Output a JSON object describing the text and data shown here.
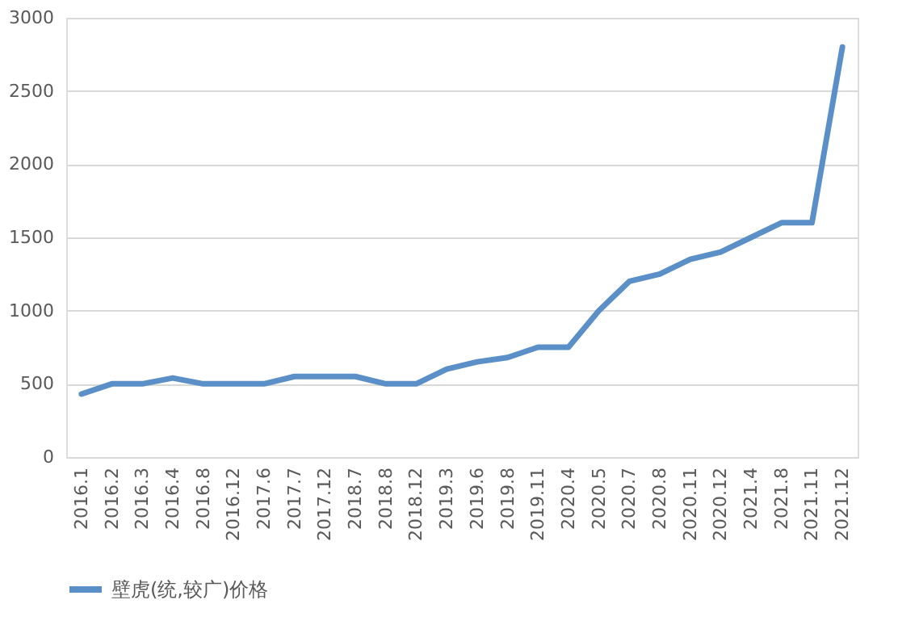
{
  "chart_data": {
    "type": "line",
    "categories": [
      "2016.1",
      "2016.2",
      "2016.3",
      "2016.4",
      "2016.8",
      "2016.12",
      "2017.6",
      "2017.7",
      "2017.12",
      "2018.7",
      "2018.8",
      "2018.12",
      "2019.3",
      "2019.6",
      "2019.8",
      "2019.11",
      "2020.4",
      "2020.5",
      "2020.7",
      "2020.8",
      "2020.11",
      "2020.12",
      "2021.4",
      "2021.8",
      "2021.11",
      "2021.12"
    ],
    "series": [
      {
        "name": "壁虎(统,较广)价格",
        "color": "#5b8fc7",
        "values": [
          430,
          500,
          500,
          540,
          500,
          500,
          500,
          550,
          550,
          550,
          500,
          500,
          600,
          650,
          680,
          750,
          750,
          1000,
          1200,
          1250,
          1350,
          1400,
          1500,
          1600,
          1600,
          2800
        ]
      }
    ],
    "ylim": [
      0,
      3000
    ],
    "yticks": [
      0,
      500,
      1000,
      1500,
      2000,
      2500,
      3000
    ],
    "grid": "y",
    "legend": "bottom",
    "marker": "none",
    "line_style": "solid"
  }
}
